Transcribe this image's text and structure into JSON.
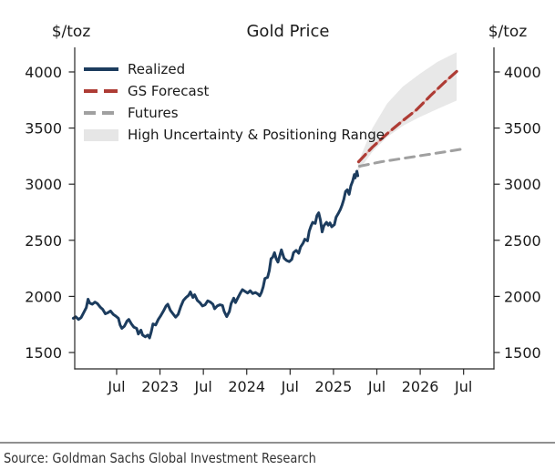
{
  "header": {
    "left_units": "$/toz",
    "right_units": "$/toz"
  },
  "legend": {
    "items": [
      {
        "label": "Realized"
      },
      {
        "label": "GS Forecast"
      },
      {
        "label": "Futures"
      },
      {
        "label": "High Uncertainty & Positioning Range"
      }
    ]
  },
  "footer": {
    "source": "Source: Goldman Sachs Global Investment Research"
  },
  "colors": {
    "realized": "#1c3c5e",
    "forecast": "#ae3c35",
    "forecast_underlay": "#e6b3ae",
    "futures": "#a0a0a0",
    "band": "#e6e6e6",
    "axis": "#262626",
    "text": "#1a1a1a",
    "divider": "#909090",
    "source_text": "#333333"
  },
  "chart_data": {
    "type": "line",
    "title": "Gold Price",
    "unit": "$/toz",
    "grid": false,
    "legend_position": "upper left",
    "xlim": [
      2022.017,
      2026.85
    ],
    "ylim": [
      1354,
      4219
    ],
    "yticks": [
      1500,
      2000,
      2500,
      3000,
      3500,
      4000
    ],
    "xticks": [
      {
        "x": 2022.5,
        "label": "Jul"
      },
      {
        "x": 2023.0,
        "label": "2023"
      },
      {
        "x": 2023.5,
        "label": "Jul"
      },
      {
        "x": 2024.0,
        "label": "2024"
      },
      {
        "x": 2024.5,
        "label": "Jul"
      },
      {
        "x": 2025.0,
        "label": "2025"
      },
      {
        "x": 2025.5,
        "label": "Jul"
      },
      {
        "x": 2026.0,
        "label": "2026"
      },
      {
        "x": 2026.5,
        "label": "Jul"
      }
    ],
    "series": [
      {
        "name": "Realized",
        "style": "solid",
        "color_key": "realized",
        "points": [
          [
            2022.0,
            1805
          ],
          [
            2022.03,
            1818
          ],
          [
            2022.06,
            1795
          ],
          [
            2022.09,
            1810
          ],
          [
            2022.12,
            1855
          ],
          [
            2022.15,
            1900
          ],
          [
            2022.17,
            1975
          ],
          [
            2022.19,
            1940
          ],
          [
            2022.22,
            1930
          ],
          [
            2022.25,
            1950
          ],
          [
            2022.28,
            1935
          ],
          [
            2022.31,
            1905
          ],
          [
            2022.34,
            1885
          ],
          [
            2022.37,
            1845
          ],
          [
            2022.4,
            1855
          ],
          [
            2022.43,
            1870
          ],
          [
            2022.46,
            1840
          ],
          [
            2022.49,
            1825
          ],
          [
            2022.52,
            1805
          ],
          [
            2022.54,
            1745
          ],
          [
            2022.56,
            1715
          ],
          [
            2022.59,
            1735
          ],
          [
            2022.62,
            1780
          ],
          [
            2022.64,
            1795
          ],
          [
            2022.67,
            1755
          ],
          [
            2022.7,
            1725
          ],
          [
            2022.73,
            1715
          ],
          [
            2022.75,
            1665
          ],
          [
            2022.78,
            1700
          ],
          [
            2022.8,
            1655
          ],
          [
            2022.83,
            1640
          ],
          [
            2022.86,
            1655
          ],
          [
            2022.88,
            1630
          ],
          [
            2022.9,
            1685
          ],
          [
            2022.92,
            1755
          ],
          [
            2022.95,
            1745
          ],
          [
            2022.98,
            1795
          ],
          [
            2023.01,
            1830
          ],
          [
            2023.04,
            1870
          ],
          [
            2023.07,
            1915
          ],
          [
            2023.09,
            1930
          ],
          [
            2023.12,
            1875
          ],
          [
            2023.15,
            1845
          ],
          [
            2023.18,
            1815
          ],
          [
            2023.21,
            1840
          ],
          [
            2023.24,
            1910
          ],
          [
            2023.27,
            1965
          ],
          [
            2023.3,
            1990
          ],
          [
            2023.33,
            2010
          ],
          [
            2023.35,
            2040
          ],
          [
            2023.38,
            1990
          ],
          [
            2023.4,
            2015
          ],
          [
            2023.43,
            1965
          ],
          [
            2023.46,
            1945
          ],
          [
            2023.49,
            1915
          ],
          [
            2023.52,
            1925
          ],
          [
            2023.55,
            1960
          ],
          [
            2023.58,
            1950
          ],
          [
            2023.61,
            1930
          ],
          [
            2023.63,
            1890
          ],
          [
            2023.66,
            1915
          ],
          [
            2023.69,
            1925
          ],
          [
            2023.72,
            1920
          ],
          [
            2023.74,
            1865
          ],
          [
            2023.77,
            1820
          ],
          [
            2023.8,
            1865
          ],
          [
            2023.82,
            1935
          ],
          [
            2023.85,
            1985
          ],
          [
            2023.87,
            1945
          ],
          [
            2023.9,
            1990
          ],
          [
            2023.93,
            2035
          ],
          [
            2023.95,
            2060
          ],
          [
            2023.98,
            2045
          ],
          [
            2024.01,
            2030
          ],
          [
            2024.04,
            2050
          ],
          [
            2024.07,
            2025
          ],
          [
            2024.1,
            2035
          ],
          [
            2024.13,
            2020
          ],
          [
            2024.15,
            2005
          ],
          [
            2024.17,
            2035
          ],
          [
            2024.19,
            2085
          ],
          [
            2024.21,
            2160
          ],
          [
            2024.24,
            2170
          ],
          [
            2024.26,
            2230
          ],
          [
            2024.28,
            2335
          ],
          [
            2024.3,
            2350
          ],
          [
            2024.32,
            2390
          ],
          [
            2024.34,
            2335
          ],
          [
            2024.36,
            2305
          ],
          [
            2024.38,
            2360
          ],
          [
            2024.4,
            2415
          ],
          [
            2024.43,
            2340
          ],
          [
            2024.46,
            2320
          ],
          [
            2024.49,
            2310
          ],
          [
            2024.52,
            2330
          ],
          [
            2024.54,
            2390
          ],
          [
            2024.57,
            2410
          ],
          [
            2024.6,
            2385
          ],
          [
            2024.62,
            2440
          ],
          [
            2024.65,
            2475
          ],
          [
            2024.67,
            2510
          ],
          [
            2024.7,
            2495
          ],
          [
            2024.72,
            2580
          ],
          [
            2024.74,
            2625
          ],
          [
            2024.76,
            2660
          ],
          [
            2024.79,
            2650
          ],
          [
            2024.81,
            2720
          ],
          [
            2024.83,
            2745
          ],
          [
            2024.85,
            2680
          ],
          [
            2024.87,
            2575
          ],
          [
            2024.89,
            2630
          ],
          [
            2024.92,
            2660
          ],
          [
            2024.94,
            2635
          ],
          [
            2024.96,
            2655
          ],
          [
            2024.98,
            2620
          ],
          [
            2025.01,
            2640
          ],
          [
            2025.03,
            2705
          ],
          [
            2025.06,
            2745
          ],
          [
            2025.08,
            2775
          ],
          [
            2025.1,
            2815
          ],
          [
            2025.12,
            2865
          ],
          [
            2025.14,
            2935
          ],
          [
            2025.16,
            2950
          ],
          [
            2025.18,
            2910
          ],
          [
            2025.2,
            2985
          ],
          [
            2025.22,
            3025
          ],
          [
            2025.24,
            3085
          ],
          [
            2025.25,
            3055
          ],
          [
            2025.27,
            3115
          ],
          [
            2025.28,
            3075
          ]
        ]
      },
      {
        "name": "GS Forecast",
        "style": "dashed",
        "color_key": "forecast",
        "points": [
          [
            2025.29,
            3200
          ],
          [
            2025.45,
            3330
          ],
          [
            2025.62,
            3450
          ],
          [
            2025.79,
            3560
          ],
          [
            2025.96,
            3665
          ],
          [
            2026.12,
            3790
          ],
          [
            2026.29,
            3915
          ],
          [
            2026.42,
            4005
          ]
        ]
      },
      {
        "name": "Futures",
        "style": "dashed",
        "color_key": "futures",
        "points": [
          [
            2025.3,
            3160
          ],
          [
            2025.55,
            3200
          ],
          [
            2025.8,
            3230
          ],
          [
            2026.05,
            3260
          ],
          [
            2026.3,
            3290
          ],
          [
            2026.5,
            3315
          ]
        ]
      }
    ],
    "band": {
      "name": "High Uncertainty & Positioning Range",
      "color_key": "band",
      "lower": [
        [
          2025.28,
          3110
        ],
        [
          2025.45,
          3290
        ],
        [
          2025.62,
          3420
        ],
        [
          2025.8,
          3520
        ],
        [
          2026.0,
          3600
        ],
        [
          2026.2,
          3670
        ],
        [
          2026.42,
          3745
        ]
      ],
      "upper": [
        [
          2025.28,
          3185
        ],
        [
          2025.45,
          3500
        ],
        [
          2025.62,
          3720
        ],
        [
          2025.8,
          3870
        ],
        [
          2026.0,
          3985
        ],
        [
          2026.2,
          4090
        ],
        [
          2026.42,
          4175
        ]
      ]
    }
  }
}
